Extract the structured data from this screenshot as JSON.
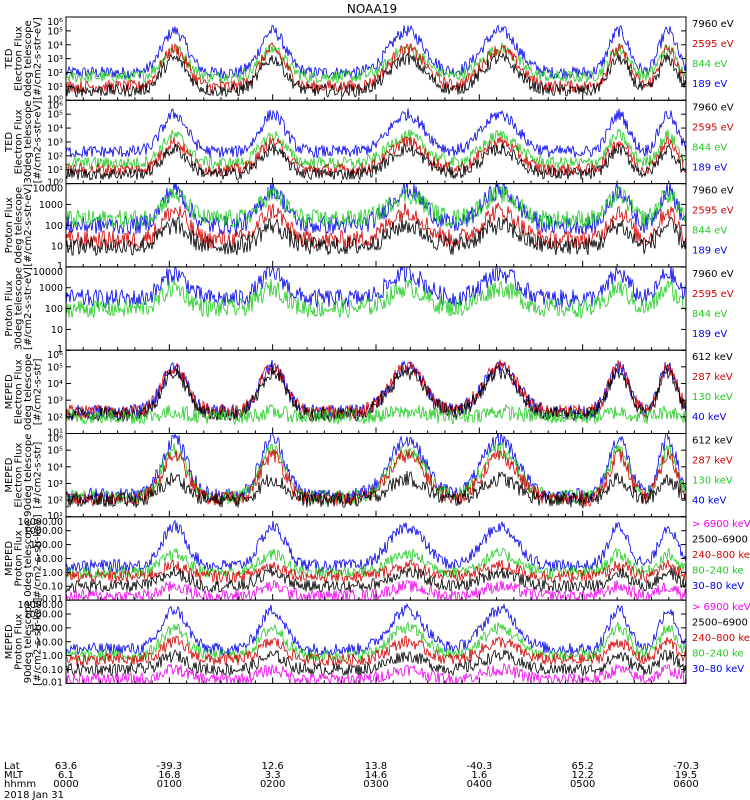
{
  "chart_data": {
    "type": "line",
    "title": "NOAA19",
    "date_label": "2018 Jan 31",
    "bottom_axis": {
      "row_labels": [
        "Lat",
        "MLT",
        "hhmm"
      ],
      "ticks": [
        {
          "lat": "63.6",
          "mlt": "6.1",
          "time": "0000"
        },
        {
          "lat": "-39.3",
          "mlt": "16.8",
          "time": "0100"
        },
        {
          "lat": "12.6",
          "mlt": "3.3",
          "time": "0200"
        },
        {
          "lat": "13.8",
          "mlt": "14.6",
          "time": "0300"
        },
        {
          "lat": "-40.3",
          "mlt": "1.6",
          "time": "0400"
        },
        {
          "lat": "65.2",
          "mlt": "12.2",
          "time": "0500"
        },
        {
          "lat": "-70.3",
          "mlt": "19.5",
          "time": "0600"
        }
      ]
    },
    "activity_windows_hours": [
      [
        0.8,
        1.3
      ],
      [
        1.75,
        2.25
      ],
      [
        2.95,
        3.65
      ],
      [
        3.85,
        4.55
      ],
      [
        5.15,
        5.55
      ],
      [
        5.65,
        6.0
      ]
    ],
    "panels": [
      {
        "id": "ted-e-0",
        "ylabel": [
          "TED",
          "Electron Flux",
          "0deg telescope",
          "[#/cm2-s-str-eV]"
        ],
        "scale": "log",
        "ylim": [
          1,
          1000000
        ],
        "ytick_labels": [
          "10⁰",
          "10¹",
          "10²",
          "10³",
          "10⁴",
          "10⁵",
          "10⁶"
        ],
        "legend": [
          {
            "text": "7960 eV",
            "color": "#000000"
          },
          {
            "text": "2595 eV",
            "color": "#d40000"
          },
          {
            "text": "844 eV",
            "color": "#22cc22"
          },
          {
            "text": "189 eV",
            "color": "#0000ee"
          }
        ],
        "series": [
          {
            "color": "#0000ee",
            "base": 100,
            "peak": 100000
          },
          {
            "color": "#22cc22",
            "base": 50,
            "peak": 5000
          },
          {
            "color": "#d40000",
            "base": 10,
            "peak": 5000
          },
          {
            "color": "#000000",
            "base": 5,
            "peak": 1000
          }
        ]
      },
      {
        "id": "ted-e-30",
        "ylabel": [
          "TED",
          "Electron Flux",
          "30deg telescope",
          "[#/cm2-s-str-eV]"
        ],
        "scale": "log",
        "ylim": [
          1,
          1000000
        ],
        "ytick_labels": [
          "10⁰",
          "10¹",
          "10²",
          "10³",
          "10⁴",
          "10⁵",
          "10⁶"
        ],
        "legend": [
          {
            "text": "7960 eV",
            "color": "#000000"
          },
          {
            "text": "2595 eV",
            "color": "#d40000"
          },
          {
            "text": "844 eV",
            "color": "#22cc22"
          },
          {
            "text": "189 eV",
            "color": "#0000ee"
          }
        ],
        "series": [
          {
            "color": "#0000ee",
            "base": 200,
            "peak": 100000
          },
          {
            "color": "#22cc22",
            "base": 30,
            "peak": 3000
          },
          {
            "color": "#d40000",
            "base": 10,
            "peak": 1000
          },
          {
            "color": "#000000",
            "base": 5,
            "peak": 300
          }
        ]
      },
      {
        "id": "ted-p-0",
        "ylabel": [
          "Proton Flux",
          "0deg telescope",
          "[#/cm2-s-str-eV]"
        ],
        "scale": "log",
        "ylim": [
          1,
          10000
        ],
        "ytick_labels": [
          "1",
          "10",
          "100",
          "1000",
          "10000"
        ],
        "legend": [
          {
            "text": "7960 eV",
            "color": "#000000"
          },
          {
            "text": "2595 eV",
            "color": "#d40000"
          },
          {
            "text": "844 eV",
            "color": "#22cc22"
          },
          {
            "text": "189 eV",
            "color": "#0000ee"
          }
        ],
        "series": [
          {
            "color": "#0000ee",
            "base": 100,
            "peak": 5000
          },
          {
            "color": "#22cc22",
            "base": 200,
            "peak": 3000
          },
          {
            "color": "#d40000",
            "base": 20,
            "peak": 500
          },
          {
            "color": "#000000",
            "base": 10,
            "peak": 100
          }
        ]
      },
      {
        "id": "ted-p-30",
        "ylabel": [
          "Proton Flux",
          "30deg telescope",
          "[#/cm2-s-str-eV]"
        ],
        "scale": "log",
        "ylim": [
          1,
          10000
        ],
        "ytick_labels": [
          "1",
          "10",
          "100",
          "1000",
          "10000"
        ],
        "legend": [
          {
            "text": "7960 eV",
            "color": "#000000"
          },
          {
            "text": "2595 eV",
            "color": "#d40000"
          },
          {
            "text": "844 eV",
            "color": "#22cc22"
          },
          {
            "text": "189 eV",
            "color": "#0000ee"
          }
        ],
        "series": [
          {
            "color": "#0000ee",
            "base": 300,
            "peak": 5000
          },
          {
            "color": "#22cc22",
            "base": 100,
            "peak": 1000
          }
        ]
      },
      {
        "id": "meped-e-0",
        "ylabel": [
          "MEPED",
          "Electron Flux",
          "0deg telescope",
          "[#/cm2-s-str]"
        ],
        "scale": "log",
        "ylim": [
          10,
          1000000
        ],
        "ytick_labels": [
          "10¹",
          "10²",
          "10³",
          "10⁴",
          "10⁵",
          "10⁶"
        ],
        "legend": [
          {
            "text": "612 keV",
            "color": "#000000"
          },
          {
            "text": "287 keV",
            "color": "#d40000"
          },
          {
            "text": "130 keV",
            "color": "#22cc22"
          },
          {
            "text": "40 keV",
            "color": "#0000ee"
          }
        ],
        "series": [
          {
            "color": "#0000ee",
            "base": 200,
            "peak": 100000
          },
          {
            "color": "#d40000",
            "base": 200,
            "peak": 100000
          },
          {
            "color": "#000000",
            "base": 150,
            "peak": 50000
          },
          {
            "color": "#22cc22",
            "base": 100,
            "peak": 200
          }
        ]
      },
      {
        "id": "meped-e-90",
        "ylabel": [
          "MEPED",
          "Electron Flux",
          "90deg telescope",
          "[#/cm2-s-str]"
        ],
        "scale": "log",
        "ylim": [
          10,
          1000000
        ],
        "ytick_labels": [
          "10¹",
          "10²",
          "10³",
          "10⁴",
          "10⁵",
          "10⁶"
        ],
        "legend": [
          {
            "text": "612 keV",
            "color": "#000000"
          },
          {
            "text": "287 keV",
            "color": "#d40000"
          },
          {
            "text": "130 keV",
            "color": "#22cc22"
          },
          {
            "text": "40 keV",
            "color": "#0000ee"
          }
        ],
        "series": [
          {
            "color": "#0000ee",
            "base": 200,
            "peak": 500000
          },
          {
            "color": "#22cc22",
            "base": 150,
            "peak": 100000
          },
          {
            "color": "#d40000",
            "base": 120,
            "peak": 50000
          },
          {
            "color": "#000000",
            "base": 100,
            "peak": 2000
          }
        ]
      },
      {
        "id": "meped-p-0",
        "ylabel": [
          "MEPED",
          "Proton Flux",
          "0deg telescope",
          "[#/cm2-s-str-keV]"
        ],
        "scale": "log",
        "ylim": [
          0.01,
          10000
        ],
        "ytick_labels": [
          "0.01",
          "0.10",
          "1.00",
          "10.00",
          "100.00",
          "1000.00",
          "10000.00"
        ],
        "legend": [
          {
            "text": "> 6900 keV",
            "color": "#ee00ee"
          },
          {
            "text": "2500–6900",
            "color": "#000000"
          },
          {
            "text": "240–800 ke",
            "color": "#d40000"
          },
          {
            "text": "80–240 ke",
            "color": "#22cc22"
          },
          {
            "text": "30–80 keV",
            "color": "#0000ee"
          }
        ],
        "series": [
          {
            "color": "#0000ee",
            "base": 3,
            "peak": 2000
          },
          {
            "color": "#22cc22",
            "base": 1,
            "peak": 20
          },
          {
            "color": "#d40000",
            "base": 0.5,
            "peak": 3
          },
          {
            "color": "#000000",
            "base": 0.1,
            "peak": 1
          },
          {
            "color": "#ee00ee",
            "base": 0.02,
            "peak": 0.1
          }
        ]
      },
      {
        "id": "meped-p-90",
        "ylabel": [
          "MEPED",
          "Proton Flux",
          "90deg telescope",
          "[#/cm2-s-str-keV]"
        ],
        "scale": "log",
        "ylim": [
          0.01,
          10000
        ],
        "ytick_labels": [
          "0.01",
          "0.10",
          "1.00",
          "10.00",
          "100.00",
          "1000.00",
          "10000.00"
        ],
        "legend": [
          {
            "text": "> 6900 keV",
            "color": "#ee00ee"
          },
          {
            "text": "2500–6900",
            "color": "#000000"
          },
          {
            "text": "240–800 ke",
            "color": "#d40000"
          },
          {
            "text": "80–240 ke",
            "color": "#22cc22"
          },
          {
            "text": "30–80 keV",
            "color": "#0000ee"
          }
        ],
        "series": [
          {
            "color": "#0000ee",
            "base": 3,
            "peak": 2000
          },
          {
            "color": "#22cc22",
            "base": 1,
            "peak": 100
          },
          {
            "color": "#d40000",
            "base": 0.5,
            "peak": 10
          },
          {
            "color": "#000000",
            "base": 0.1,
            "peak": 1
          },
          {
            "color": "#ee00ee",
            "base": 0.02,
            "peak": 0.1
          }
        ]
      }
    ]
  }
}
